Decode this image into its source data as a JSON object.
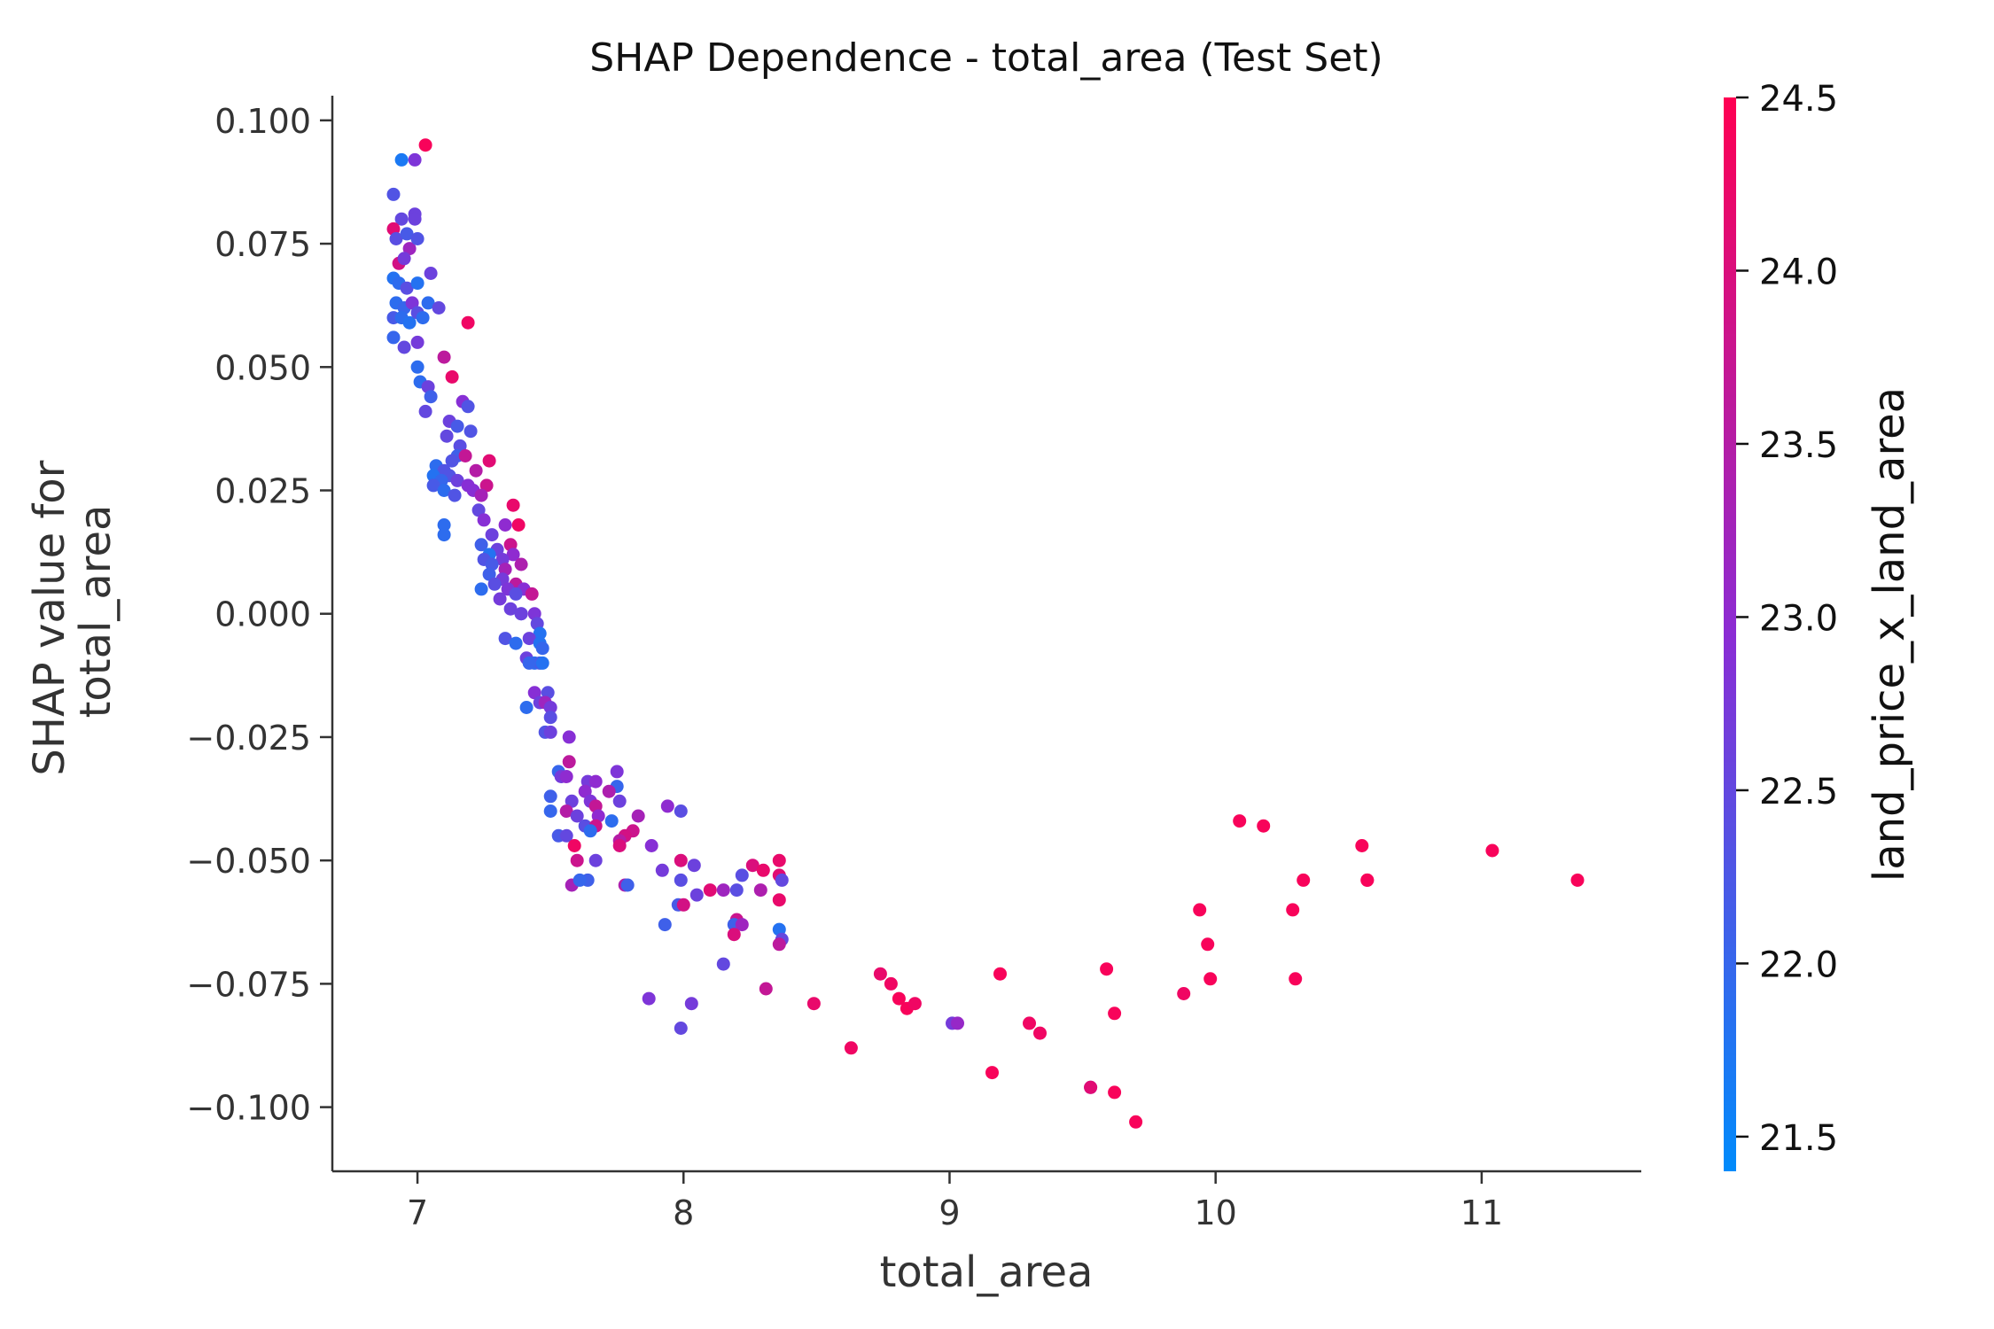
{
  "chart_data": {
    "type": "scatter",
    "title": "SHAP Dependence - total_area (Test Set)",
    "xlabel": "total_area",
    "ylabel_lines": [
      "SHAP value for",
      "total_area"
    ],
    "xlim": [
      6.68,
      11.6
    ],
    "ylim": [
      -0.113,
      0.105
    ],
    "x_ticks": [
      7,
      8,
      9,
      10,
      11
    ],
    "x_tick_labels": [
      "7",
      "8",
      "9",
      "10",
      "11"
    ],
    "y_ticks": [
      0.1,
      0.075,
      0.05,
      0.025,
      0.0,
      -0.025,
      -0.05,
      -0.075,
      -0.1
    ],
    "y_tick_labels": [
      "0.100",
      "0.075",
      "0.050",
      "0.025",
      "0.000",
      "−0.025",
      "−0.050",
      "−0.075",
      "−0.100"
    ],
    "colorbar": {
      "label": "land_price_x_land_area",
      "range": [
        21.4,
        24.5
      ],
      "ticks": [
        21.5,
        22.0,
        22.5,
        23.0,
        23.5,
        24.0,
        24.5
      ],
      "tick_labels": [
        "21.5",
        "22.0",
        "22.5",
        "23.0",
        "23.5",
        "24.0",
        "24.5"
      ],
      "color_low": "#008bfb",
      "color_mid": "#8b2cd4",
      "color_high": "#ff0052"
    },
    "points": [
      [
        7.03,
        0.095,
        24.4
      ],
      [
        6.94,
        0.092,
        21.7
      ],
      [
        6.99,
        0.092,
        22.8
      ],
      [
        6.91,
        0.085,
        22.3
      ],
      [
        6.94,
        0.08,
        22.5
      ],
      [
        6.99,
        0.081,
        22.6
      ],
      [
        6.99,
        0.08,
        22.6
      ],
      [
        6.91,
        0.078,
        24.1
      ],
      [
        6.92,
        0.076,
        22.4
      ],
      [
        6.96,
        0.077,
        22.2
      ],
      [
        6.97,
        0.074,
        23.2
      ],
      [
        7.0,
        0.076,
        22.3
      ],
      [
        6.93,
        0.071,
        23.9
      ],
      [
        6.95,
        0.072,
        22.7
      ],
      [
        7.05,
        0.069,
        22.6
      ],
      [
        6.91,
        0.068,
        21.8
      ],
      [
        6.93,
        0.067,
        21.9
      ],
      [
        6.96,
        0.066,
        22.4
      ],
      [
        7.0,
        0.067,
        21.8
      ],
      [
        6.92,
        0.063,
        21.9
      ],
      [
        6.95,
        0.062,
        22.0
      ],
      [
        6.98,
        0.063,
        22.8
      ],
      [
        7.04,
        0.063,
        21.9
      ],
      [
        7.08,
        0.062,
        22.5
      ],
      [
        6.91,
        0.06,
        22.2
      ],
      [
        6.94,
        0.06,
        21.9
      ],
      [
        6.97,
        0.059,
        21.8
      ],
      [
        7.0,
        0.061,
        22.4
      ],
      [
        7.02,
        0.06,
        21.9
      ],
      [
        6.91,
        0.056,
        22.0
      ],
      [
        6.95,
        0.054,
        22.5
      ],
      [
        7.0,
        0.055,
        22.7
      ],
      [
        7.1,
        0.052,
        23.6
      ],
      [
        7.19,
        0.059,
        24.3
      ],
      [
        7.0,
        0.05,
        21.9
      ],
      [
        7.13,
        0.048,
        24.2
      ],
      [
        7.01,
        0.047,
        21.9
      ],
      [
        7.04,
        0.046,
        22.6
      ],
      [
        7.05,
        0.044,
        22.1
      ],
      [
        7.03,
        0.041,
        22.5
      ],
      [
        7.17,
        0.043,
        22.9
      ],
      [
        7.19,
        0.042,
        22.3
      ],
      [
        7.12,
        0.039,
        22.6
      ],
      [
        7.15,
        0.038,
        22.2
      ],
      [
        7.2,
        0.037,
        22.3
      ],
      [
        7.11,
        0.036,
        22.5
      ],
      [
        7.16,
        0.034,
        22.4
      ],
      [
        7.15,
        0.032,
        22.1
      ],
      [
        7.13,
        0.031,
        22.3
      ],
      [
        7.18,
        0.032,
        23.7
      ],
      [
        7.27,
        0.031,
        24.1
      ],
      [
        7.07,
        0.03,
        21.9
      ],
      [
        7.1,
        0.029,
        22.3
      ],
      [
        7.12,
        0.028,
        22.3
      ],
      [
        7.22,
        0.029,
        23.5
      ],
      [
        7.06,
        0.028,
        21.8
      ],
      [
        7.09,
        0.027,
        22.0
      ],
      [
        7.15,
        0.027,
        22.6
      ],
      [
        7.19,
        0.026,
        22.9
      ],
      [
        7.26,
        0.026,
        23.8
      ],
      [
        7.06,
        0.026,
        22.2
      ],
      [
        7.1,
        0.025,
        21.9
      ],
      [
        7.14,
        0.024,
        22.3
      ],
      [
        7.21,
        0.025,
        22.9
      ],
      [
        7.24,
        0.024,
        23.3
      ],
      [
        7.36,
        0.022,
        24.2
      ],
      [
        7.23,
        0.021,
        22.5
      ],
      [
        7.25,
        0.019,
        22.9
      ],
      [
        7.33,
        0.018,
        23.0
      ],
      [
        7.38,
        0.018,
        24.3
      ],
      [
        7.1,
        0.018,
        21.9
      ],
      [
        7.1,
        0.016,
        21.9
      ],
      [
        7.28,
        0.016,
        22.6
      ],
      [
        7.24,
        0.014,
        22.1
      ],
      [
        7.3,
        0.013,
        22.6
      ],
      [
        7.35,
        0.014,
        23.8
      ],
      [
        7.36,
        0.012,
        23.0
      ],
      [
        7.27,
        0.012,
        21.8
      ],
      [
        7.25,
        0.011,
        22.3
      ],
      [
        7.32,
        0.011,
        22.7
      ],
      [
        7.28,
        0.01,
        22.2
      ],
      [
        7.33,
        0.009,
        23.3
      ],
      [
        7.39,
        0.01,
        23.4
      ],
      [
        7.27,
        0.008,
        22.1
      ],
      [
        7.32,
        0.007,
        22.7
      ],
      [
        7.37,
        0.006,
        23.6
      ],
      [
        7.29,
        0.006,
        22.4
      ],
      [
        7.34,
        0.005,
        22.8
      ],
      [
        7.24,
        0.005,
        21.9
      ],
      [
        7.4,
        0.005,
        22.9
      ],
      [
        7.31,
        0.003,
        22.7
      ],
      [
        7.37,
        0.004,
        22.4
      ],
      [
        7.43,
        0.004,
        23.7
      ],
      [
        7.35,
        0.001,
        22.6
      ],
      [
        7.39,
        0.0,
        22.1
      ],
      [
        7.39,
        0.0,
        22.6
      ],
      [
        7.44,
        0.0,
        22.8
      ],
      [
        7.45,
        -0.002,
        22.5
      ],
      [
        7.46,
        -0.004,
        21.8
      ],
      [
        7.42,
        -0.005,
        22.6
      ],
      [
        7.33,
        -0.005,
        22.3
      ],
      [
        7.37,
        -0.006,
        21.9
      ],
      [
        7.46,
        -0.006,
        21.8
      ],
      [
        7.47,
        -0.007,
        22.0
      ],
      [
        7.41,
        -0.009,
        22.6
      ],
      [
        7.44,
        -0.01,
        21.9
      ],
      [
        7.46,
        -0.01,
        22.2
      ],
      [
        7.47,
        -0.01,
        21.8
      ],
      [
        7.42,
        -0.01,
        22.0
      ],
      [
        7.44,
        -0.016,
        22.9
      ],
      [
        7.49,
        -0.016,
        22.4
      ],
      [
        7.46,
        -0.018,
        22.6
      ],
      [
        7.48,
        -0.018,
        23.2
      ],
      [
        7.41,
        -0.019,
        21.9
      ],
      [
        7.5,
        -0.019,
        22.7
      ],
      [
        7.5,
        -0.021,
        22.4
      ],
      [
        7.48,
        -0.024,
        22.3
      ],
      [
        7.5,
        -0.024,
        22.6
      ],
      [
        7.57,
        -0.025,
        22.9
      ],
      [
        7.53,
        -0.032,
        22.0
      ],
      [
        7.57,
        -0.03,
        23.6
      ],
      [
        7.54,
        -0.033,
        22.7
      ],
      [
        7.56,
        -0.033,
        23.0
      ],
      [
        7.64,
        -0.034,
        22.7
      ],
      [
        7.67,
        -0.034,
        23.0
      ],
      [
        7.75,
        -0.032,
        22.8
      ],
      [
        7.75,
        -0.035,
        22.0
      ],
      [
        7.63,
        -0.036,
        23.0
      ],
      [
        7.72,
        -0.036,
        23.4
      ],
      [
        7.5,
        -0.037,
        22.1
      ],
      [
        7.58,
        -0.038,
        22.6
      ],
      [
        7.65,
        -0.038,
        22.8
      ],
      [
        7.67,
        -0.039,
        23.7
      ],
      [
        7.76,
        -0.038,
        22.6
      ],
      [
        7.94,
        -0.039,
        23.0
      ],
      [
        7.99,
        -0.04,
        22.4
      ],
      [
        7.5,
        -0.04,
        22.0
      ],
      [
        7.56,
        -0.04,
        23.5
      ],
      [
        7.6,
        -0.041,
        22.6
      ],
      [
        7.68,
        -0.041,
        23.0
      ],
      [
        7.73,
        -0.042,
        21.9
      ],
      [
        7.83,
        -0.041,
        23.3
      ],
      [
        7.63,
        -0.043,
        22.4
      ],
      [
        7.67,
        -0.043,
        23.8
      ],
      [
        7.81,
        -0.044,
        23.8
      ],
      [
        7.53,
        -0.045,
        22.2
      ],
      [
        7.56,
        -0.045,
        22.5
      ],
      [
        7.65,
        -0.044,
        21.9
      ],
      [
        7.78,
        -0.045,
        23.9
      ],
      [
        7.76,
        -0.046,
        23.5
      ],
      [
        7.59,
        -0.047,
        24.3
      ],
      [
        7.88,
        -0.047,
        22.9
      ],
      [
        7.76,
        -0.047,
        24.0
      ],
      [
        7.6,
        -0.05,
        23.8
      ],
      [
        7.67,
        -0.05,
        22.6
      ],
      [
        7.99,
        -0.05,
        24.0
      ],
      [
        8.04,
        -0.051,
        22.6
      ],
      [
        8.26,
        -0.051,
        24.0
      ],
      [
        8.3,
        -0.052,
        24.2
      ],
      [
        8.36,
        -0.05,
        24.2
      ],
      [
        7.92,
        -0.052,
        22.7
      ],
      [
        8.36,
        -0.053,
        24.1
      ],
      [
        8.22,
        -0.053,
        22.4
      ],
      [
        7.64,
        -0.054,
        22.1
      ],
      [
        7.99,
        -0.054,
        22.4
      ],
      [
        8.37,
        -0.054,
        22.5
      ],
      [
        7.58,
        -0.055,
        23.3
      ],
      [
        7.78,
        -0.055,
        23.4
      ],
      [
        7.79,
        -0.055,
        22.1
      ],
      [
        7.61,
        -0.054,
        22.0
      ],
      [
        8.1,
        -0.056,
        24.1
      ],
      [
        8.15,
        -0.056,
        23.2
      ],
      [
        8.2,
        -0.056,
        22.4
      ],
      [
        8.29,
        -0.056,
        23.4
      ],
      [
        8.05,
        -0.057,
        22.6
      ],
      [
        8.36,
        -0.058,
        24.2
      ],
      [
        7.98,
        -0.059,
        22.2
      ],
      [
        8.0,
        -0.059,
        23.9
      ],
      [
        8.2,
        -0.062,
        23.8
      ],
      [
        8.36,
        -0.064,
        21.8
      ],
      [
        8.19,
        -0.063,
        22.1
      ],
      [
        8.22,
        -0.063,
        23.2
      ],
      [
        7.93,
        -0.063,
        22.1
      ],
      [
        8.37,
        -0.066,
        22.5
      ],
      [
        8.36,
        -0.067,
        23.6
      ],
      [
        8.19,
        -0.065,
        24.0
      ],
      [
        8.15,
        -0.071,
        22.5
      ],
      [
        7.87,
        -0.078,
        22.8
      ],
      [
        8.03,
        -0.079,
        22.7
      ],
      [
        7.99,
        -0.084,
        22.5
      ],
      [
        8.31,
        -0.076,
        23.7
      ],
      [
        8.49,
        -0.079,
        24.2
      ],
      [
        8.63,
        -0.088,
        24.3
      ],
      [
        8.74,
        -0.073,
        24.2
      ],
      [
        8.78,
        -0.075,
        24.3
      ],
      [
        8.81,
        -0.078,
        24.4
      ],
      [
        8.84,
        -0.08,
        24.4
      ],
      [
        8.87,
        -0.079,
        24.3
      ],
      [
        9.01,
        -0.083,
        22.7
      ],
      [
        9.03,
        -0.083,
        23.1
      ],
      [
        9.16,
        -0.093,
        24.4
      ],
      [
        9.19,
        -0.073,
        24.4
      ],
      [
        9.3,
        -0.083,
        24.3
      ],
      [
        9.34,
        -0.085,
        24.3
      ],
      [
        9.53,
        -0.096,
        23.0
      ],
      [
        9.53,
        -0.096,
        24.1
      ],
      [
        9.59,
        -0.072,
        24.4
      ],
      [
        9.62,
        -0.081,
        24.4
      ],
      [
        9.62,
        -0.097,
        24.4
      ],
      [
        9.7,
        -0.103,
        24.4
      ],
      [
        9.88,
        -0.077,
        24.3
      ],
      [
        9.94,
        -0.06,
        24.4
      ],
      [
        9.97,
        -0.067,
        24.4
      ],
      [
        9.98,
        -0.074,
        24.4
      ],
      [
        10.09,
        -0.042,
        24.4
      ],
      [
        10.18,
        -0.043,
        24.4
      ],
      [
        10.29,
        -0.06,
        24.4
      ],
      [
        10.3,
        -0.074,
        24.4
      ],
      [
        10.33,
        -0.054,
        24.4
      ],
      [
        10.55,
        -0.047,
        24.4
      ],
      [
        10.57,
        -0.054,
        24.4
      ],
      [
        10.57,
        -0.054,
        24.4
      ],
      [
        11.04,
        -0.048,
        24.4
      ],
      [
        11.36,
        -0.054,
        24.4
      ]
    ]
  }
}
